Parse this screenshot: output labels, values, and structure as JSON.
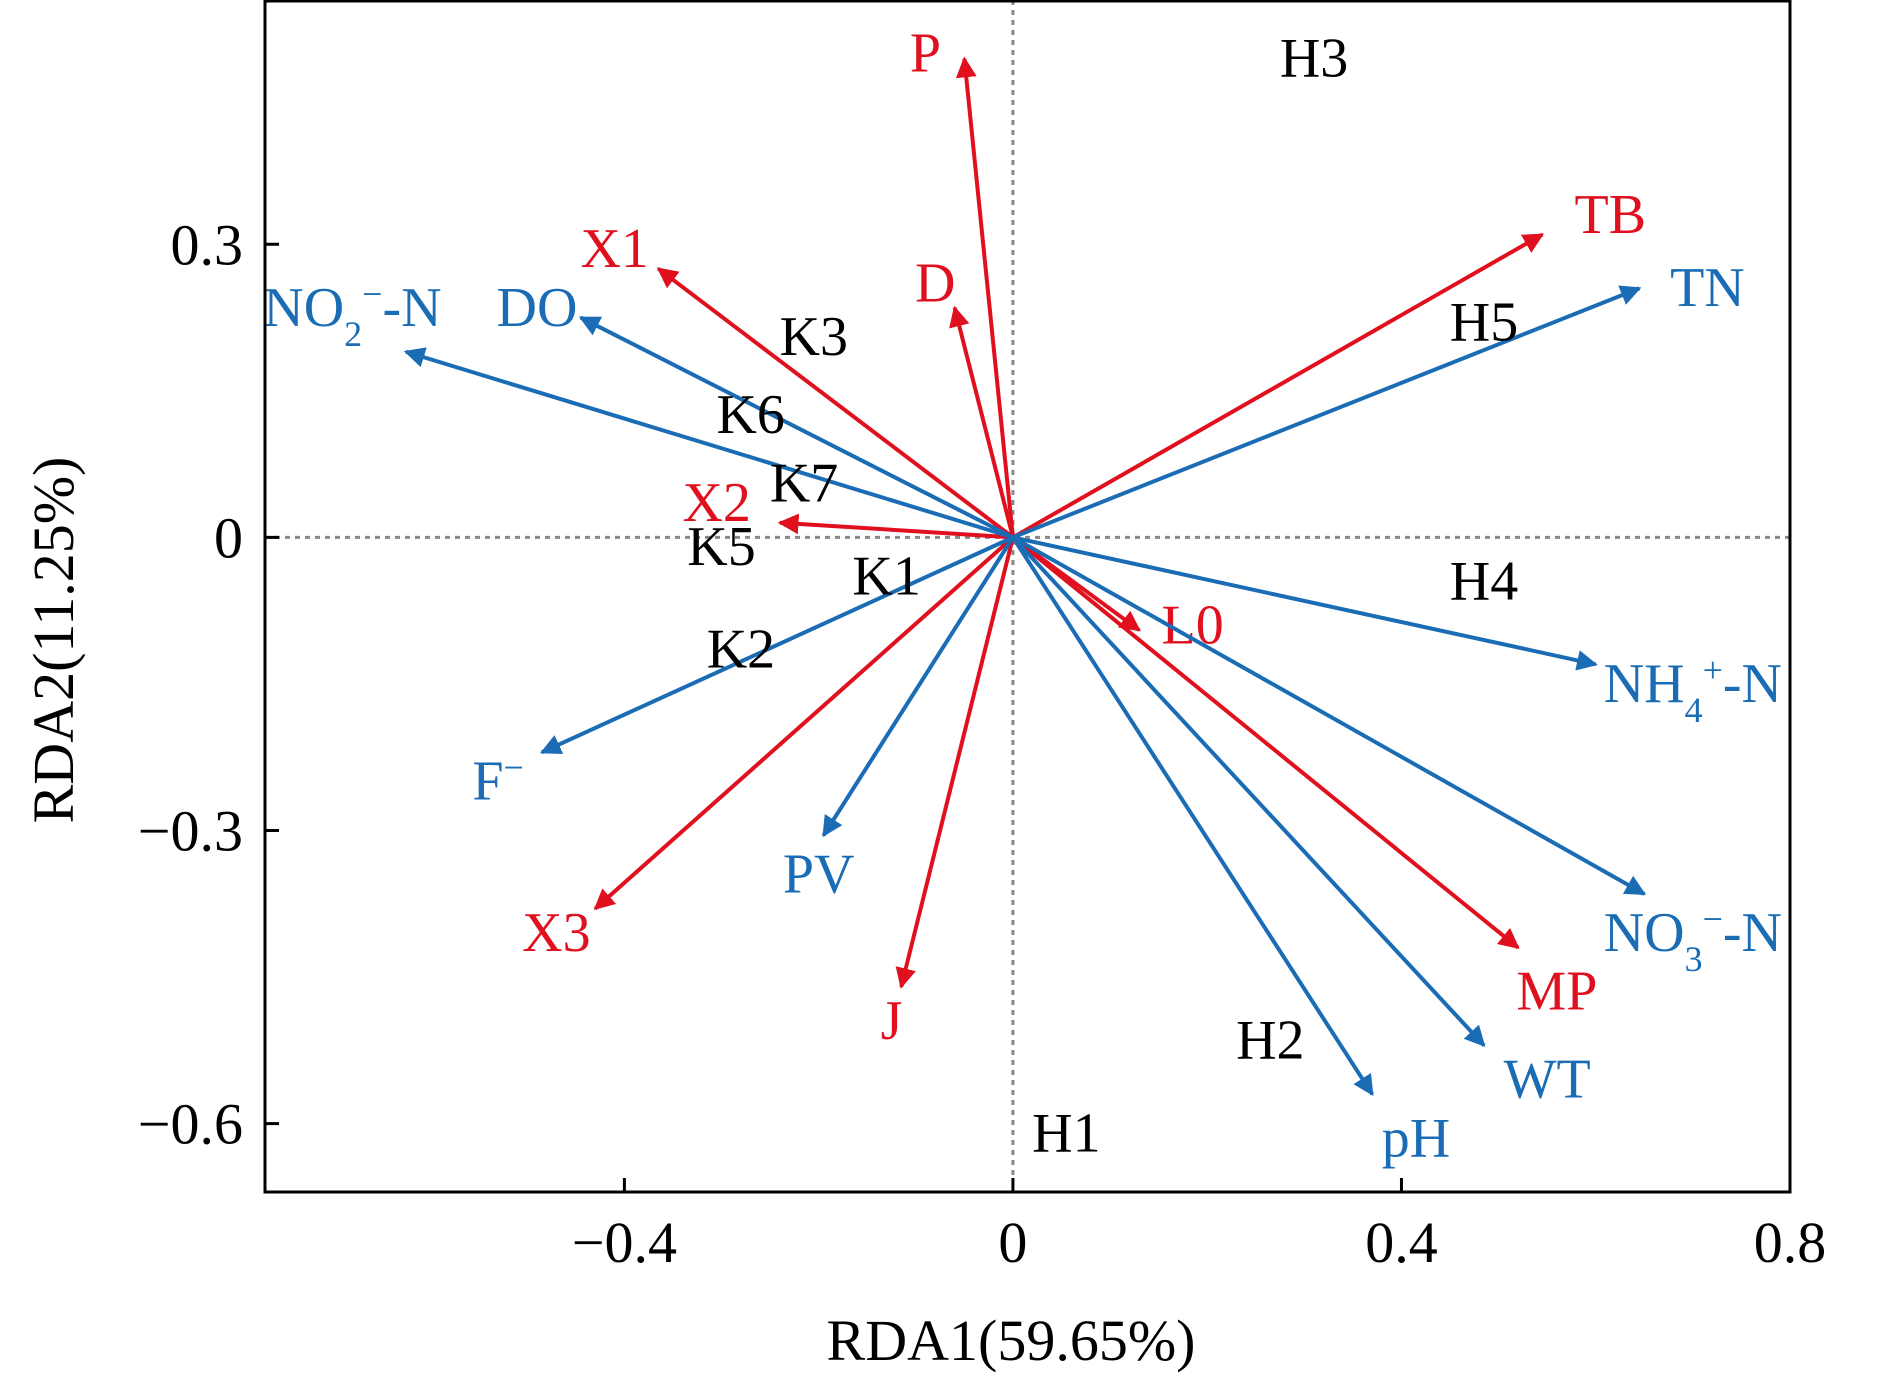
{
  "chart_data": {
    "type": "scatter",
    "subtype": "rda-biplot",
    "title": "",
    "xlabel": "RDA1(59.65%)",
    "ylabel": "RDA2(11.25%)",
    "xlim": [
      -0.77,
      0.8
    ],
    "ylim": [
      -0.67,
      0.55
    ],
    "xticks": [
      -0.4,
      0,
      0.4,
      0.8
    ],
    "xtick_labels": [
      "−0.4",
      "0",
      "0.4",
      "0.8"
    ],
    "yticks": [
      0.3,
      0,
      -0.3,
      -0.6
    ],
    "ytick_labels": [
      "0.3",
      "0",
      "−0.3",
      "−0.6"
    ],
    "reference_lines": {
      "x": 0,
      "y": 0,
      "style": "dotted"
    },
    "colors": {
      "red": "#e0101e",
      "blue": "#1a6cb5",
      "black": "#000000",
      "ref": "#888888"
    },
    "vectors": [
      {
        "group": "red",
        "x": -0.05,
        "y": 0.49,
        "label": "P",
        "lx": -0.09,
        "ly": 0.495
      },
      {
        "group": "red",
        "x": -0.06,
        "y": 0.235,
        "label": "D",
        "lx": -0.08,
        "ly": 0.26
      },
      {
        "group": "red",
        "x": -0.365,
        "y": 0.275,
        "label": "X1",
        "lx": -0.41,
        "ly": 0.295
      },
      {
        "group": "red",
        "x": -0.24,
        "y": 0.015,
        "label": "X2",
        "lx": -0.305,
        "ly": 0.035
      },
      {
        "group": "red",
        "x": -0.43,
        "y": -0.38,
        "label": "X3",
        "lx": -0.47,
        "ly": -0.405
      },
      {
        "group": "red",
        "x": -0.115,
        "y": -0.46,
        "label": "J",
        "lx": -0.125,
        "ly": -0.495
      },
      {
        "group": "red",
        "x": 0.13,
        "y": -0.095,
        "label": "L0",
        "lx": 0.185,
        "ly": -0.09
      },
      {
        "group": "red",
        "x": 0.52,
        "y": -0.42,
        "label": "MP",
        "lx": 0.56,
        "ly": -0.465
      },
      {
        "group": "red",
        "x": 0.545,
        "y": 0.31,
        "label": "TB",
        "lx": 0.615,
        "ly": 0.33
      },
      {
        "group": "blue",
        "x": -0.445,
        "y": 0.225,
        "label": "DO",
        "lx": -0.49,
        "ly": 0.235
      },
      {
        "group": "blue",
        "x": -0.625,
        "y": 0.19,
        "label": "NO2−-N",
        "lx": -0.68,
        "ly": 0.235,
        "rich": "no2"
      },
      {
        "group": "blue",
        "x": -0.485,
        "y": -0.22,
        "label": "F−",
        "lx": -0.53,
        "ly": -0.25,
        "rich": "f"
      },
      {
        "group": "blue",
        "x": -0.195,
        "y": -0.305,
        "label": "PV",
        "lx": -0.2,
        "ly": -0.345
      },
      {
        "group": "blue",
        "x": 0.37,
        "y": -0.57,
        "label": "pH",
        "lx": 0.415,
        "ly": -0.615
      },
      {
        "group": "blue",
        "x": 0.485,
        "y": -0.52,
        "label": "WT",
        "lx": 0.55,
        "ly": -0.555
      },
      {
        "group": "blue",
        "x": 0.65,
        "y": -0.365,
        "label": "NO3−-N",
        "lx": 0.7,
        "ly": -0.405,
        "rich": "no3"
      },
      {
        "group": "blue",
        "x": 0.6,
        "y": -0.13,
        "label": "NH4+-N",
        "lx": 0.7,
        "ly": -0.15,
        "rich": "nh4"
      },
      {
        "group": "blue",
        "x": 0.645,
        "y": 0.255,
        "label": "TN",
        "lx": 0.715,
        "ly": 0.255
      }
    ],
    "sites": [
      {
        "label": "H3",
        "x": 0.31,
        "y": 0.49
      },
      {
        "label": "H5",
        "x": 0.485,
        "y": 0.22
      },
      {
        "label": "H4",
        "x": 0.485,
        "y": -0.045
      },
      {
        "label": "H2",
        "x": 0.265,
        "y": -0.515
      },
      {
        "label": "H1",
        "x": 0.055,
        "y": -0.61
      },
      {
        "label": "K3",
        "x": -0.205,
        "y": 0.205
      },
      {
        "label": "K6",
        "x": -0.27,
        "y": 0.125
      },
      {
        "label": "K7",
        "x": -0.215,
        "y": 0.055
      },
      {
        "label": "K5",
        "x": -0.3,
        "y": -0.01
      },
      {
        "label": "K1",
        "x": -0.13,
        "y": -0.04
      },
      {
        "label": "K2",
        "x": -0.28,
        "y": -0.115
      }
    ]
  }
}
